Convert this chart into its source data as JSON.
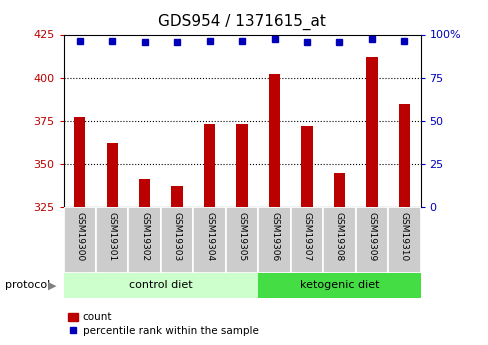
{
  "title": "GDS954 / 1371615_at",
  "samples": [
    "GSM19300",
    "GSM19301",
    "GSM19302",
    "GSM19303",
    "GSM19304",
    "GSM19305",
    "GSM19306",
    "GSM19307",
    "GSM19308",
    "GSM19309",
    "GSM19310"
  ],
  "counts": [
    377,
    362,
    341,
    337,
    373,
    373,
    402,
    372,
    345,
    412,
    385
  ],
  "percentiles": [
    96.5,
    96.5,
    95.8,
    95.5,
    96.5,
    96.5,
    97.2,
    95.8,
    95.8,
    97.5,
    96.5
  ],
  "ylim_left": [
    325,
    425
  ],
  "ylim_right": [
    0,
    100
  ],
  "yticks_left": [
    325,
    350,
    375,
    400,
    425
  ],
  "yticks_right": [
    0,
    25,
    50,
    75,
    100
  ],
  "bar_color": "#bb0000",
  "square_color": "#0000bb",
  "control_diet_count": 6,
  "control_label": "control diet",
  "ketogenic_label": "ketogenic diet",
  "protocol_label": "protocol",
  "legend_count": "count",
  "legend_percentile": "percentile rank within the sample",
  "bg_color_control": "#ccffcc",
  "bg_color_ketogenic": "#44dd44",
  "bar_bg_color": "#cccccc",
  "title_fontsize": 11,
  "tick_fontsize": 8,
  "label_fontsize": 8,
  "bar_width": 0.35
}
